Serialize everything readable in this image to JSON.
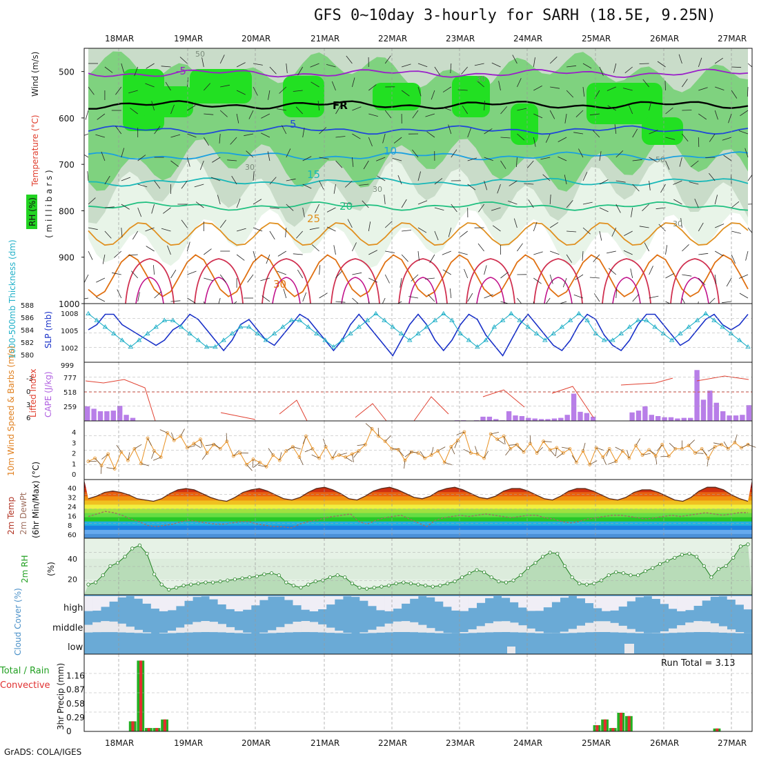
{
  "title": "GFS 0~10day 3-hourly for SARH (18.5E, 9.25N)",
  "footer": "GrADS: COLA/IGES",
  "chart_data": [
    {
      "panel": "upper-air",
      "type": "heatmap",
      "ylabel_parts": [
        "RH (%)",
        "Temperature (°C)",
        "Wind (m/s)"
      ],
      "yunit": "( m i l l i b a r s )",
      "yticks": [
        "500",
        "600",
        "700",
        "800",
        "900",
        "1000"
      ],
      "ylim": [
        1000,
        450
      ],
      "x_dates": [
        "18MAR",
        "19MAR",
        "20MAR",
        "21MAR",
        "22MAR",
        "23MAR",
        "24MAR",
        "25MAR",
        "26MAR",
        "27MAR"
      ],
      "temperature_contours": [
        {
          "label": "-5",
          "color": "#9a1fc9",
          "p": 504
        },
        {
          "label": "FR",
          "color": "#000000",
          "p": 572
        },
        {
          "label": "5",
          "color": "#2048d8",
          "p": 626
        },
        {
          "label": "10",
          "color": "#1aa0e0",
          "p": 682
        },
        {
          "label": "15",
          "color": "#18b8b8",
          "p": 738
        },
        {
          "label": "20",
          "color": "#20c080",
          "p": 790
        },
        {
          "label": "25",
          "color": "#e09020",
          "p": 850
        },
        {
          "label": "30",
          "color": "#e07010",
          "p": 940
        }
      ],
      "rh_labels": [
        "50",
        "30",
        "30",
        "50",
        "30",
        "30"
      ]
    },
    {
      "panel": "thickness-slp",
      "type": "line",
      "ylabel_left": "1000-500mb Thickness (dm)",
      "ylabel_right": "SLP (mb)",
      "yticks_left": [
        "588",
        "586",
        "584",
        "582",
        "580"
      ],
      "yticks_right": [
        "1008",
        "1005",
        "1002",
        "999"
      ],
      "series": [
        {
          "name": "SLP (mb)",
          "color": "#1830c8",
          "values": [
            1005,
            1006,
            1008,
            1008,
            1006,
            1005,
            1004,
            1003,
            1002,
            1003,
            1005,
            1006,
            1008,
            1007,
            1005,
            1003,
            1001,
            1003,
            1006,
            1007,
            1005,
            1003,
            1002,
            1004,
            1006,
            1008,
            1007,
            1005,
            1003,
            1001,
            1003,
            1006,
            1008,
            1006,
            1004,
            1002,
            1000,
            1003,
            1006,
            1008,
            1006,
            1003,
            1001,
            1003,
            1006,
            1008,
            1007,
            1004,
            1002,
            1000,
            1003,
            1006,
            1008,
            1006,
            1004,
            1002,
            1001,
            1003,
            1006,
            1008,
            1007,
            1004,
            1002,
            1001,
            1003,
            1006,
            1008,
            1008,
            1006,
            1004,
            1002,
            1003,
            1005,
            1007,
            1008,
            1006,
            1005,
            1006,
            1008
          ]
        },
        {
          "name": "1000-500mb Thickness (dm)",
          "color": "#20b0c8",
          "values": [
            587,
            586,
            585,
            584,
            583,
            582,
            583,
            584,
            585,
            586,
            586,
            585,
            584,
            583,
            582,
            582,
            583,
            584,
            585,
            585,
            584,
            583,
            584,
            585,
            586,
            586,
            585,
            584,
            583,
            582,
            583,
            584,
            585,
            586,
            587,
            586,
            585,
            584,
            583,
            584,
            585,
            586,
            587,
            586,
            584,
            583,
            582,
            583,
            585,
            586,
            587,
            586,
            585,
            584,
            583,
            584,
            585,
            586,
            587,
            586,
            584,
            583,
            583,
            584,
            585,
            586,
            586,
            585,
            584,
            583,
            584,
            585,
            586,
            587,
            586,
            585,
            584,
            583,
            582
          ]
        }
      ]
    },
    {
      "panel": "stability",
      "type": "bar",
      "ylabel_left": "Lifted Index",
      "ylabel_right": "CAPE (J/kg)",
      "yticks_left": [
        "-3",
        "0",
        "3",
        "6"
      ],
      "yticks_right": [
        "777",
        "518",
        "259"
      ],
      "cape": [
        240,
        200,
        160,
        160,
        170,
        250,
        100,
        50,
        0,
        0,
        0,
        0,
        0,
        0,
        0,
        0,
        0,
        0,
        0,
        0,
        0,
        0,
        0,
        0,
        0,
        0,
        0,
        0,
        0,
        0,
        0,
        0,
        0,
        0,
        0,
        0,
        0,
        0,
        0,
        0,
        0,
        0,
        0,
        0,
        0,
        0,
        0,
        0,
        0,
        0,
        0,
        0,
        0,
        0,
        0,
        0,
        0,
        10,
        10,
        0,
        10,
        70,
        70,
        30,
        10,
        160,
        90,
        80,
        50,
        40,
        30,
        30,
        40,
        50,
        100,
        450,
        150,
        130,
        70,
        0,
        0,
        0,
        0,
        0,
        140,
        170,
        240,
        100,
        80,
        60,
        60,
        40,
        50,
        50,
        840,
        350,
        500,
        300,
        160,
        90,
        90,
        100,
        260
      ]
    },
    {
      "panel": "wind10m",
      "type": "line",
      "ylabel": "10m Wind Speed & Barbs (m/s)",
      "yticks": [
        "4",
        "3",
        "2",
        "1",
        "0"
      ],
      "series": [
        {
          "name": "Speed",
          "color": "#e89020",
          "values": [
            1.2,
            1.5,
            0.8,
            1.9,
            0.5,
            2.1,
            1.3,
            2.4,
            1.0,
            3.4,
            2.2,
            1.6,
            3.9,
            3.2,
            3.6,
            2.5,
            2.9,
            3.3,
            2.0,
            2.8,
            2.4,
            3.1,
            1.7,
            2.0,
            0.9,
            1.4,
            1.1,
            0.7,
            1.8,
            1.3,
            2.2,
            2.6,
            1.6,
            3.6,
            2.4,
            1.5,
            2.6,
            1.5,
            1.8,
            1.6,
            1.9,
            2.2,
            2.8,
            4.3,
            3.6,
            3.1,
            2.4,
            2.3,
            1.3,
            2.1,
            2.0,
            1.5,
            1.8,
            2.2,
            1.1,
            2.6,
            3.2,
            4.0,
            2.0,
            1.9,
            1.5,
            3.8,
            3.3,
            3.6,
            2.4,
            2.8,
            2.1,
            2.9,
            2.0,
            3.1,
            2.3,
            2.5,
            2.0,
            2.4,
            1.1,
            2.2,
            0.9,
            2.5,
            1.6,
            2.4,
            1.2,
            2.2,
            1.5,
            2.7,
            1.8,
            2.3,
            1.7,
            2.8,
            1.7,
            2.4,
            2.4,
            2.7,
            2.0,
            2.4,
            1.5,
            2.6,
            2.8,
            2.4,
            3.0,
            2.5,
            2.8
          ]
        }
      ]
    },
    {
      "panel": "temp2m",
      "type": "area",
      "ylabel_parts": [
        "2m Temp",
        "2m DewPt",
        "(6hr Min/Max) (°C)"
      ],
      "yticks": [
        "40",
        "32",
        "24",
        "16",
        "8",
        "60"
      ],
      "series": [
        {
          "name": "2m Temp",
          "color": "#5a2a1a",
          "values": [
            30,
            32,
            35,
            36,
            35,
            33,
            30,
            29,
            28,
            30,
            34,
            37,
            38,
            37,
            34,
            31,
            29,
            28,
            31,
            35,
            37,
            38,
            36,
            33,
            30,
            29,
            31,
            35,
            38,
            39,
            37,
            34,
            30,
            29,
            32,
            36,
            38,
            39,
            37,
            34,
            31,
            30,
            32,
            36,
            38,
            39,
            37,
            34,
            31,
            30,
            32,
            36,
            38,
            38,
            36,
            33,
            30,
            29,
            32,
            36,
            38,
            38,
            36,
            33,
            30,
            29,
            31,
            35,
            37,
            37,
            35,
            32,
            29,
            28,
            31,
            36,
            39,
            39,
            37,
            33,
            30,
            28
          ]
        },
        {
          "name": "2m DewPt",
          "color": "#a07060",
          "values": [
            16,
            18,
            20,
            19,
            17,
            14,
            12,
            9,
            8,
            9,
            10,
            12,
            13,
            12,
            11,
            10,
            10,
            11,
            12,
            12,
            10,
            9,
            8,
            8,
            7,
            10,
            12,
            13,
            15,
            16,
            17,
            18,
            12,
            10,
            13,
            15,
            16,
            17,
            14,
            11,
            8,
            13,
            15,
            16,
            17,
            16,
            17,
            18,
            17,
            16,
            15,
            16,
            17,
            17,
            15,
            14,
            12,
            11,
            12,
            14,
            15,
            16,
            17,
            17,
            16,
            15,
            14,
            15,
            16,
            17,
            16,
            17,
            18,
            19,
            18,
            17,
            18,
            19,
            19
          ]
        }
      ]
    },
    {
      "panel": "rh2m",
      "type": "area",
      "ylabel": "2m RH (%)",
      "yticks": [
        "40",
        "20"
      ],
      "series": [
        {
          "name": "2m RH",
          "color": "#208020",
          "values": [
            15,
            17,
            24,
            33,
            36,
            42,
            50,
            53,
            45,
            25,
            15,
            10,
            12,
            14,
            15,
            16,
            17,
            17,
            18,
            19,
            20,
            21,
            22,
            23,
            25,
            26,
            24,
            17,
            14,
            12,
            15,
            18,
            19,
            22,
            24,
            22,
            16,
            12,
            11,
            12,
            13,
            14,
            16,
            17,
            16,
            15,
            14,
            13,
            14,
            16,
            18,
            22,
            26,
            29,
            27,
            22,
            18,
            17,
            19,
            24,
            31,
            36,
            42,
            46,
            45,
            33,
            22,
            16,
            15,
            16,
            19,
            24,
            27,
            26,
            24,
            24,
            28,
            31,
            35,
            38,
            41,
            44,
            45,
            42,
            33,
            22,
            30,
            33,
            41,
            52,
            54
          ]
        }
      ]
    },
    {
      "panel": "cloud",
      "type": "heatmap",
      "ylabel": "Cloud Cover (%)",
      "levels": [
        "high",
        "middle",
        "low"
      ]
    },
    {
      "panel": "precip",
      "type": "bar",
      "ylabel": "3hr Precip (mm)",
      "legend": [
        "Total / Rain",
        "Convective"
      ],
      "yticks": [
        "1.16",
        "0.87",
        "0.58",
        "0.29",
        "0"
      ],
      "annotation": "Run Total = 3.13",
      "bars": [
        {
          "i": 3,
          "v": 0.21
        },
        {
          "i": 4,
          "v": 1.48
        },
        {
          "i": 5,
          "v": 0.07
        },
        {
          "i": 6,
          "v": 0.07
        },
        {
          "i": 7,
          "v": 0.25
        },
        {
          "i": 61,
          "v": 0.13
        },
        {
          "i": 62,
          "v": 0.25
        },
        {
          "i": 63,
          "v": 0.07
        },
        {
          "i": 64,
          "v": 0.39
        },
        {
          "i": 65,
          "v": 0.32
        },
        {
          "i": 76,
          "v": 0.06
        }
      ]
    }
  ]
}
